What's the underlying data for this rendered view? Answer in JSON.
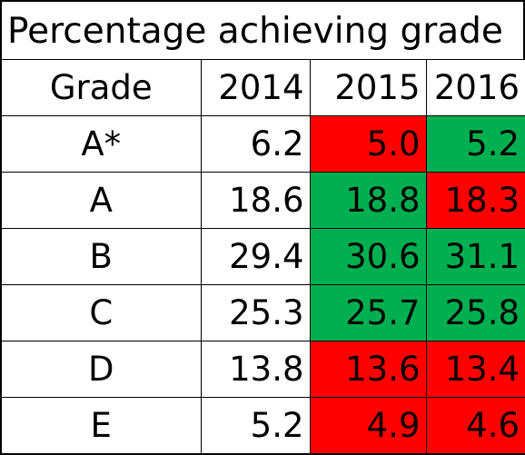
{
  "title": "Percentage achieving grade",
  "colors": {
    "increase": "#00B050",
    "decrease": "#FF0000",
    "neutral": "#FFFFFF",
    "text": "#000000",
    "border": "#000000"
  },
  "chart_data": {
    "type": "table",
    "title": "Percentage achieving grade",
    "columns": [
      "Grade",
      "2014",
      "2015",
      "2016"
    ],
    "rows": [
      {
        "grade": "A*",
        "values": [
          "6.2",
          "5.0",
          "5.2"
        ],
        "fills": [
          "neutral",
          "decrease",
          "increase"
        ]
      },
      {
        "grade": "A",
        "values": [
          "18.6",
          "18.8",
          "18.3"
        ],
        "fills": [
          "neutral",
          "increase",
          "decrease"
        ]
      },
      {
        "grade": "B",
        "values": [
          "29.4",
          "30.6",
          "31.1"
        ],
        "fills": [
          "neutral",
          "increase",
          "increase"
        ]
      },
      {
        "grade": "C",
        "values": [
          "25.3",
          "25.7",
          "25.8"
        ],
        "fills": [
          "neutral",
          "increase",
          "increase"
        ]
      },
      {
        "grade": "D",
        "values": [
          "13.8",
          "13.6",
          "13.4"
        ],
        "fills": [
          "neutral",
          "decrease",
          "decrease"
        ]
      },
      {
        "grade": "E",
        "values": [
          "5.2",
          "4.9",
          "4.6"
        ],
        "fills": [
          "neutral",
          "decrease",
          "decrease"
        ]
      }
    ]
  }
}
